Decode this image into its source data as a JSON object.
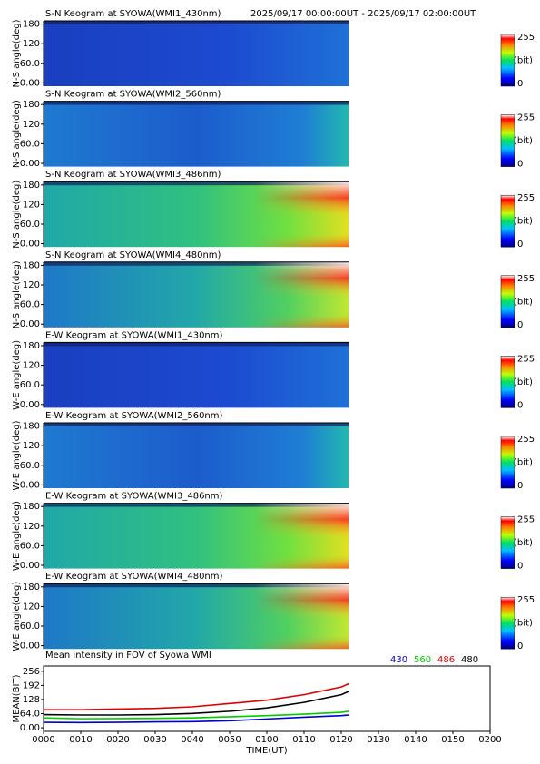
{
  "time_range": "2025/09/17 00:00:00UT - 2025/09/17 02:00:00UT",
  "keograms": [
    {
      "title": "S-N Keogram at SYOWA(WMI1_430nm)",
      "ylabel": "N-S angle(deg)"
    },
    {
      "title": "S-N Keogram at SYOWA(WMI2_560nm)",
      "ylabel": "N-S angle(deg)"
    },
    {
      "title": "S-N Keogram at SYOWA(WMI3_486nm)",
      "ylabel": "N-S angle(deg)"
    },
    {
      "title": "S-N Keogram at SYOWA(WMI4_480nm)",
      "ylabel": "N-S angle(deg)"
    },
    {
      "title": "E-W Keogram at SYOWA(WMI1_430nm)",
      "ylabel": "W-E angle(deg)"
    },
    {
      "title": "E-W Keogram at SYOWA(WMI2_560nm)",
      "ylabel": "W-E angle(deg)"
    },
    {
      "title": "E-W Keogram at SYOWA(WMI3_486nm)",
      "ylabel": "W-E angle(deg)"
    },
    {
      "title": "E-W Keogram at SYOWA(WMI4_480nm)",
      "ylabel": "W-E angle(deg)"
    }
  ],
  "keogram_ylim": [
    -10,
    190
  ],
  "keogram_yticks": [
    {
      "value": 0,
      "label": "0.00"
    },
    {
      "value": 60,
      "label": "60.0"
    },
    120,
    180
  ],
  "colorbar": {
    "max": 255,
    "unit": "(bit)",
    "min": 0
  },
  "chart_data": {
    "type": "line",
    "title": "Mean intensity in FOV of Syowa WMI",
    "xlabel": "TIME(UT)",
    "ylabel": "MEAN(BIT)",
    "x": [
      0,
      10,
      20,
      30,
      40,
      50,
      60,
      70,
      80,
      82
    ],
    "series": [
      {
        "name": "430",
        "color": "#0000cc",
        "values": [
          25,
          24,
          25,
          27,
          28,
          32,
          40,
          48,
          55,
          58
        ]
      },
      {
        "name": "560",
        "color": "#00cc00",
        "values": [
          45,
          41,
          42,
          43,
          45,
          50,
          55,
          62,
          70,
          75
        ]
      },
      {
        "name": "486",
        "color": "#dd0000",
        "values": [
          82,
          82,
          85,
          88,
          95,
          110,
          125,
          150,
          185,
          200
        ]
      },
      {
        "name": "480",
        "color": "#000000",
        "values": [
          60,
          58,
          58,
          60,
          65,
          75,
          90,
          115,
          150,
          165
        ]
      }
    ],
    "xlim": [
      0,
      120
    ],
    "xticks": [
      {
        "value": 0,
        "label": "0000"
      },
      {
        "value": 10,
        "label": "0010"
      },
      {
        "value": 20,
        "label": "0020"
      },
      {
        "value": 30,
        "label": "0030"
      },
      {
        "value": 40,
        "label": "0040"
      },
      {
        "value": 50,
        "label": "0050"
      },
      {
        "value": 60,
        "label": "0100"
      },
      {
        "value": 70,
        "label": "0110"
      },
      {
        "value": 80,
        "label": "0120"
      },
      {
        "value": 90,
        "label": "0130"
      },
      {
        "value": 100,
        "label": "0140"
      },
      {
        "value": 110,
        "label": "0150"
      },
      {
        "value": 120,
        "label": "0200"
      }
    ],
    "ylim": [
      -16,
      280
    ],
    "yticks": [
      {
        "value": 0,
        "label": "0.00"
      },
      {
        "value": 64,
        "label": "64.0"
      },
      128,
      192,
      256
    ]
  }
}
